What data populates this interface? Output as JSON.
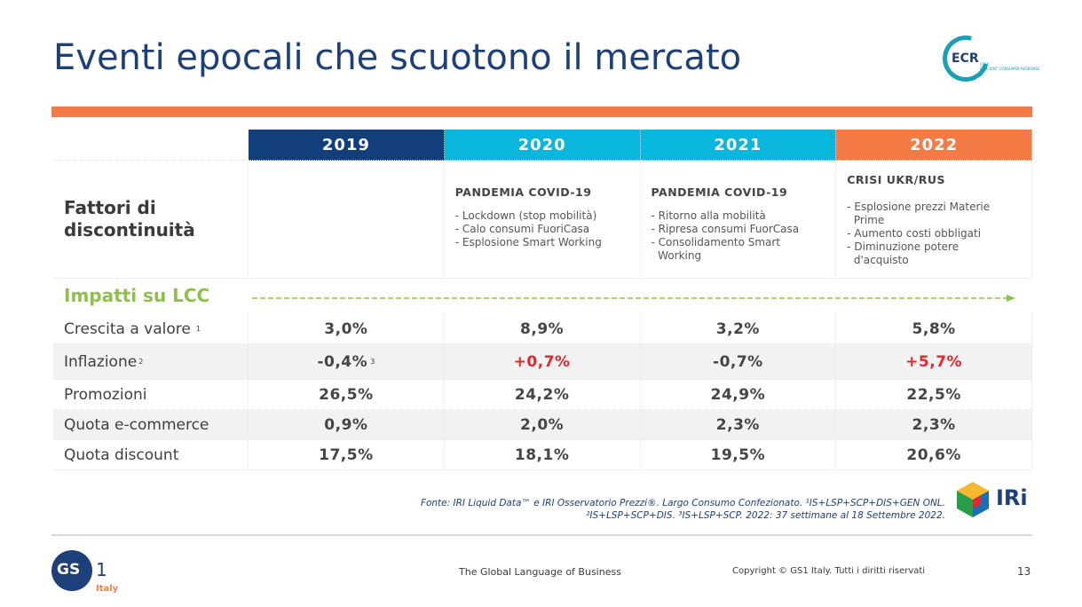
{
  "title": "Eventi epocali che scuotono il mercato",
  "logos": {
    "ecr": "ECR",
    "ecr_sub_1": "ITALY",
    "ecr_sub_2": "EFFICIENT CONSUMER RESPONSE",
    "iri": "IRi",
    "gs1": "GS",
    "gs1_one": "1",
    "gs1_italy": "Italy"
  },
  "table": {
    "years": [
      "2019",
      "2020",
      "2021",
      "2022"
    ],
    "factor_label_1": "Fattori di",
    "factor_label_2": "discontinuità",
    "factors": [
      {
        "head": "",
        "items": []
      },
      {
        "head": "PANDEMIA COVID-19",
        "items": [
          "- Lockdown (stop mobilità)",
          "- Calo consumi FuoriCasa",
          "- Esplosione Smart Working"
        ]
      },
      {
        "head": "PANDEMIA COVID-19",
        "items": [
          "- Ritorno alla mobilità",
          "- Ripresa consumi FuorCasa",
          "- Consolidamento Smart",
          "  Working"
        ]
      },
      {
        "head": "CRISI UKR/RUS",
        "items": [
          "- Esplosione prezzi Materie",
          "  Prime",
          "- Aumento costi obbligati",
          "- Diminuzione potere",
          "  d'acquisto"
        ]
      }
    ],
    "impatti_label": "Impatti su LCC",
    "rows": [
      {
        "label": "Crescita a valore",
        "sup": "1",
        "values": [
          "3,0%",
          "8,9%",
          "3,2%",
          "5,8%"
        ]
      },
      {
        "label": "Inflazione",
        "sup": "2",
        "values": [
          "-0,4%",
          "+0,7%",
          "-0,7%",
          "+5,7%"
        ],
        "value_sup": "3"
      },
      {
        "label": "Promozioni",
        "sup": "",
        "values": [
          "26,5%",
          "24,2%",
          "24,9%",
          "22,5%"
        ]
      },
      {
        "label": "Quota e-commerce",
        "sup": "",
        "values": [
          "0,9%",
          "2,0%",
          "2,3%",
          "2,3%"
        ]
      },
      {
        "label": "Quota discount",
        "sup": "",
        "values": [
          "17,5%",
          "18,1%",
          "19,5%",
          "20,6%"
        ]
      }
    ]
  },
  "source_line_1": "Fonte: IRI Liquid Data™ e IRI Osservatorio Prezzi®. Largo Consumo Confezionato. ¹IS+LSP+SCP+DIS+GEN ONL.",
  "source_line_2": "²IS+LSP+SCP+DIS. ³IS+LSP+SCP. 2022: 37 settimane al 18 Settembre 2022.",
  "footer": {
    "tagline": "The Global Language of Business",
    "copyright": "Copyright © GS1 Italy. Tutti i diritti riservati",
    "page": "13"
  },
  "colors": {
    "navy": "#123e7c",
    "cyan": "#0bb6dc",
    "orange": "#f47b45",
    "green": "#8fc04d",
    "red": "#e8242c"
  }
}
